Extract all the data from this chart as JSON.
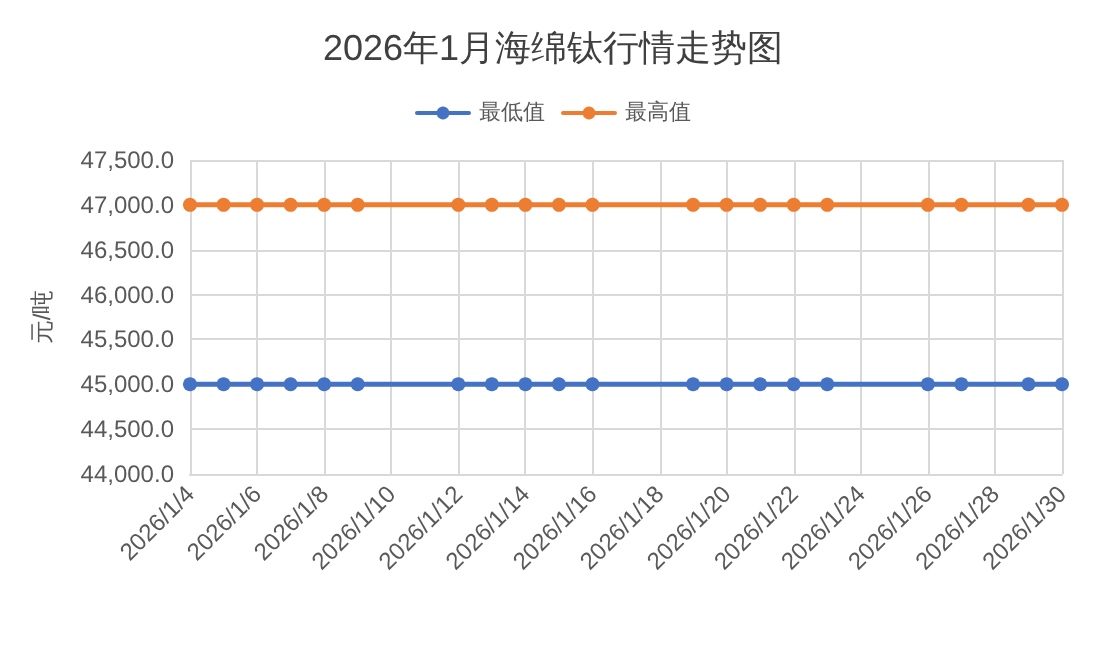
{
  "chart_data": {
    "type": "line",
    "title": "2026年1月海绵钛行情走势图",
    "ylabel": "元/吨",
    "x": [
      "2026-01-04",
      "2026-01-05",
      "2026-01-06",
      "2026-01-07",
      "2026-01-08",
      "2026-01-09",
      "2026-01-12",
      "2026-01-13",
      "2026-01-14",
      "2026-01-15",
      "2026-01-16",
      "2026-01-19",
      "2026-01-20",
      "2026-01-21",
      "2026-01-22",
      "2026-01-23",
      "2026-01-26",
      "2026-01-27",
      "2026-01-29",
      "2026-01-30"
    ],
    "series": [
      {
        "name": "最低值",
        "color": "#4472c4",
        "values": [
          45000,
          45000,
          45000,
          45000,
          45000,
          45000,
          45000,
          45000,
          45000,
          45000,
          45000,
          45000,
          45000,
          45000,
          45000,
          45000,
          45000,
          45000,
          45000,
          45000
        ]
      },
      {
        "name": "最高值",
        "color": "#ed7d31",
        "values": [
          47000,
          47000,
          47000,
          47000,
          47000,
          47000,
          47000,
          47000,
          47000,
          47000,
          47000,
          47000,
          47000,
          47000,
          47000,
          47000,
          47000,
          47000,
          47000,
          47000
        ]
      }
    ],
    "xlim": [
      "2026-01-04",
      "2026-01-30"
    ],
    "xticks": [
      {
        "value": "2026-01-04",
        "label": "2026/1/4"
      },
      {
        "value": "2026-01-06",
        "label": "2026/1/6"
      },
      {
        "value": "2026-01-08",
        "label": "2026/1/8"
      },
      {
        "value": "2026-01-10",
        "label": "2026/1/10"
      },
      {
        "value": "2026-01-12",
        "label": "2026/1/12"
      },
      {
        "value": "2026-01-14",
        "label": "2026/1/14"
      },
      {
        "value": "2026-01-16",
        "label": "2026/1/16"
      },
      {
        "value": "2026-01-18",
        "label": "2026/1/18"
      },
      {
        "value": "2026-01-20",
        "label": "2026/1/20"
      },
      {
        "value": "2026-01-22",
        "label": "2026/1/22"
      },
      {
        "value": "2026-01-24",
        "label": "2026/1/24"
      },
      {
        "value": "2026-01-26",
        "label": "2026/1/26"
      },
      {
        "value": "2026-01-28",
        "label": "2026/1/28"
      },
      {
        "value": "2026-01-30",
        "label": "2026/1/30"
      }
    ],
    "ylim": [
      44000,
      47500
    ],
    "yticks": [
      {
        "value": 44000,
        "label": "44,000.0"
      },
      {
        "value": 44500,
        "label": "44,500.0"
      },
      {
        "value": 45000,
        "label": "45,000.0"
      },
      {
        "value": 45500,
        "label": "45,500.0"
      },
      {
        "value": 46000,
        "label": "46,000.0"
      },
      {
        "value": 46500,
        "label": "46,500.0"
      },
      {
        "value": 47000,
        "label": "47,000.0"
      },
      {
        "value": 47500,
        "label": "47,500.0"
      }
    ],
    "grid": true,
    "legend": "top",
    "marker": "circle",
    "line_style": "solid"
  }
}
